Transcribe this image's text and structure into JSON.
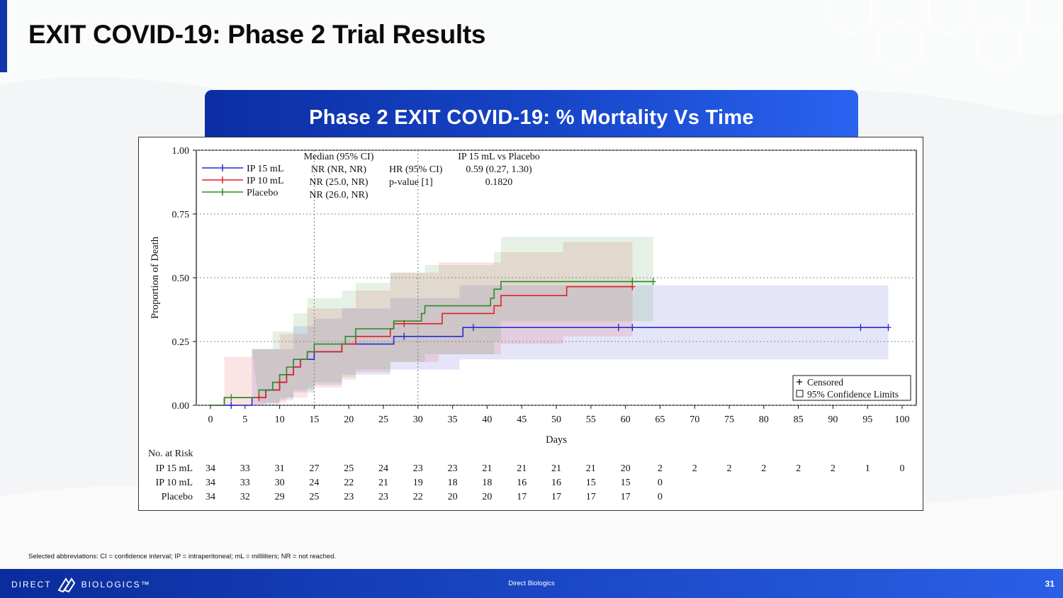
{
  "slide": {
    "title": "EXIT COVID-19: Phase 2 Trial Results",
    "banner": "Phase 2 EXIT COVID-19: % Mortality Vs Time",
    "footnote": "Selected abbreviations: CI = confidence interval; IP = intraperitoneal; mL = milliliters; NR = not reached.",
    "footer_center": "Direct Biologics",
    "page_number": "31",
    "logo_left": "DIRECT",
    "logo_right": "BIOLOGICS™"
  },
  "colors": {
    "accent": "#1036a8",
    "ip15": "#2a2ad0",
    "ip10": "#e02020",
    "placebo": "#2a8a2a"
  },
  "chart_data": {
    "type": "line",
    "subtype": "kaplan-meier-step",
    "xlabel": "Days",
    "ylabel": "Proportion of Death",
    "xlim": [
      0,
      100
    ],
    "ylim": [
      0,
      1
    ],
    "xticks": [
      "0",
      "5",
      "10",
      "15",
      "20",
      "25",
      "30",
      "35",
      "40",
      "45",
      "50",
      "55",
      "60",
      "65",
      "70",
      "75",
      "80",
      "85",
      "90",
      "95",
      "100"
    ],
    "yticks": [
      "0.00",
      "0.25",
      "0.50",
      "0.75",
      "1.00"
    ],
    "reference_lines_x": [
      15,
      30
    ],
    "series": [
      {
        "name": "IP 15 mL",
        "color": "#2a2ad0",
        "median": "NR (NR, NR)",
        "steps": [
          [
            0,
            0
          ],
          [
            6,
            0.03
          ],
          [
            8,
            0.06
          ],
          [
            10,
            0.09
          ],
          [
            11,
            0.12
          ],
          [
            12,
            0.15
          ],
          [
            13,
            0.18
          ],
          [
            15,
            0.21
          ],
          [
            18,
            0.21
          ],
          [
            19,
            0.24
          ],
          [
            26,
            0.24
          ],
          [
            26.5,
            0.27
          ],
          [
            36,
            0.27
          ],
          [
            36.5,
            0.305
          ],
          [
            98,
            0.305
          ]
        ],
        "censored": [
          [
            3,
            0.0
          ],
          [
            28,
            0.27
          ],
          [
            38,
            0.305
          ],
          [
            59,
            0.305
          ],
          [
            61,
            0.305
          ],
          [
            94,
            0.305
          ],
          [
            98,
            0.305
          ]
        ],
        "ci_upper": [
          [
            2,
            0
          ],
          [
            6,
            0.22
          ],
          [
            12,
            0.31
          ],
          [
            15,
            0.34
          ],
          [
            19,
            0.38
          ],
          [
            26,
            0.42
          ],
          [
            36,
            0.47
          ],
          [
            98,
            0.49
          ]
        ],
        "ci_lower": [
          [
            2,
            0
          ],
          [
            6,
            0.0
          ],
          [
            10,
            0.02
          ],
          [
            12,
            0.05
          ],
          [
            15,
            0.08
          ],
          [
            19,
            0.12
          ],
          [
            26,
            0.14
          ],
          [
            36,
            0.18
          ],
          [
            98,
            0.18
          ]
        ]
      },
      {
        "name": "IP 10 mL",
        "color": "#e02020",
        "median": "NR (25.0, NR)",
        "steps": [
          [
            0,
            0
          ],
          [
            2,
            0.03
          ],
          [
            8,
            0.06
          ],
          [
            10,
            0.09
          ],
          [
            11,
            0.12
          ],
          [
            12,
            0.15
          ],
          [
            13,
            0.18
          ],
          [
            14,
            0.21
          ],
          [
            18,
            0.21
          ],
          [
            19,
            0.24
          ],
          [
            21,
            0.27
          ],
          [
            25,
            0.27
          ],
          [
            26,
            0.3
          ],
          [
            26.5,
            0.32
          ],
          [
            33,
            0.32
          ],
          [
            33.5,
            0.36
          ],
          [
            40,
            0.36
          ],
          [
            41,
            0.39
          ],
          [
            42,
            0.43
          ],
          [
            51,
            0.43
          ],
          [
            51.5,
            0.465
          ],
          [
            61,
            0.465
          ]
        ],
        "censored": [
          [
            7,
            0.03
          ],
          [
            10,
            0.09
          ],
          [
            28,
            0.32
          ],
          [
            61,
            0.465
          ]
        ],
        "ci_upper": [
          [
            2,
            0.19
          ],
          [
            6,
            0.22
          ],
          [
            10,
            0.28
          ],
          [
            14,
            0.38
          ],
          [
            21,
            0.45
          ],
          [
            26,
            0.52
          ],
          [
            33,
            0.56
          ],
          [
            42,
            0.6
          ],
          [
            51,
            0.64
          ],
          [
            61,
            0.66
          ]
        ],
        "ci_lower": [
          [
            2,
            0
          ],
          [
            8,
            0.01
          ],
          [
            11,
            0.03
          ],
          [
            14,
            0.07
          ],
          [
            19,
            0.1
          ],
          [
            21,
            0.13
          ],
          [
            26,
            0.17
          ],
          [
            33,
            0.2
          ],
          [
            42,
            0.24
          ],
          [
            51,
            0.27
          ],
          [
            61,
            0.27
          ]
        ]
      },
      {
        "name": "Placebo",
        "color": "#2a8a2a",
        "median": "NR (26.0, NR)",
        "steps": [
          [
            0,
            0
          ],
          [
            2,
            0.03
          ],
          [
            7,
            0.06
          ],
          [
            9,
            0.09
          ],
          [
            10,
            0.12
          ],
          [
            11,
            0.15
          ],
          [
            12,
            0.18
          ],
          [
            14,
            0.21
          ],
          [
            15,
            0.24
          ],
          [
            19,
            0.24
          ],
          [
            19.5,
            0.27
          ],
          [
            21,
            0.3
          ],
          [
            26,
            0.3
          ],
          [
            26.5,
            0.33
          ],
          [
            30,
            0.33
          ],
          [
            30.5,
            0.36
          ],
          [
            31,
            0.39
          ],
          [
            40,
            0.39
          ],
          [
            40.5,
            0.42
          ],
          [
            41,
            0.455
          ],
          [
            42,
            0.485
          ],
          [
            64,
            0.485
          ]
        ],
        "censored": [
          [
            3,
            0.03
          ],
          [
            61,
            0.485
          ],
          [
            64,
            0.485
          ]
        ],
        "ci_upper": [
          [
            6,
            0.22
          ],
          [
            9,
            0.29
          ],
          [
            12,
            0.36
          ],
          [
            14,
            0.42
          ],
          [
            19,
            0.45
          ],
          [
            21,
            0.48
          ],
          [
            26,
            0.52
          ],
          [
            31,
            0.55
          ],
          [
            41,
            0.6
          ],
          [
            42,
            0.66
          ],
          [
            64,
            0.66
          ]
        ],
        "ci_lower": [
          [
            7,
            0.01
          ],
          [
            10,
            0.03
          ],
          [
            12,
            0.06
          ],
          [
            15,
            0.09
          ],
          [
            19,
            0.11
          ],
          [
            21,
            0.14
          ],
          [
            26,
            0.17
          ],
          [
            31,
            0.2
          ],
          [
            41,
            0.25
          ],
          [
            42,
            0.33
          ],
          [
            64,
            0.33
          ]
        ]
      }
    ],
    "stats_header_median": "Median (95% CI)",
    "stats_header_comparison": "IP 15 mL vs Placebo",
    "hr_label": "HR (95% CI)",
    "hr_value": "0.59 (0.27, 1.30)",
    "pvalue_label": "p-value [1]",
    "pvalue_value": "0.1820",
    "legend_censored": "Censored",
    "legend_ci": "95% Confidence Limits",
    "risk_table": {
      "title": "No. at Risk",
      "rows": [
        {
          "label": "IP 15 mL",
          "values": [
            "34",
            "33",
            "31",
            "27",
            "25",
            "24",
            "23",
            "23",
            "21",
            "21",
            "21",
            "21",
            "20",
            "2",
            "2",
            "2",
            "2",
            "2",
            "2",
            "1",
            "0"
          ]
        },
        {
          "label": "IP 10 mL",
          "values": [
            "34",
            "33",
            "30",
            "24",
            "22",
            "21",
            "19",
            "18",
            "18",
            "16",
            "16",
            "15",
            "15",
            "0"
          ]
        },
        {
          "label": "Placebo",
          "values": [
            "34",
            "32",
            "29",
            "25",
            "23",
            "23",
            "22",
            "20",
            "20",
            "17",
            "17",
            "17",
            "17",
            "0"
          ]
        }
      ]
    }
  }
}
